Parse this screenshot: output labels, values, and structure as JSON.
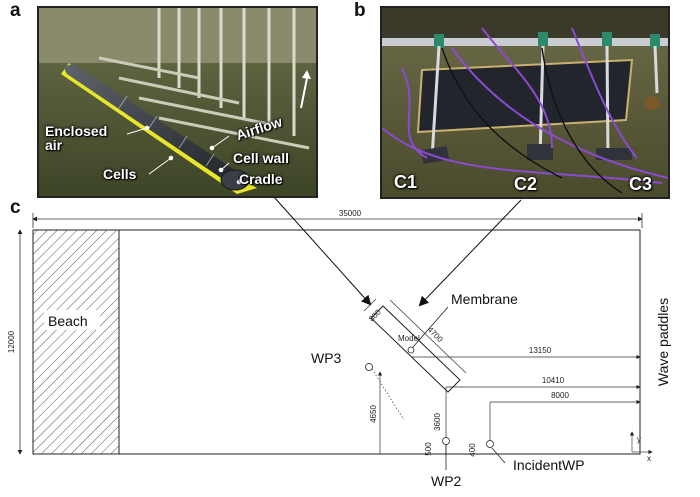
{
  "panels": {
    "a": "a",
    "b": "b",
    "c": "c"
  },
  "photo_a": {
    "labels": {
      "enclosed_air": "Enclosed\nair",
      "airflow": "Airflow",
      "cell_wall": "Cell wall",
      "cells": "Cells",
      "cradle": "Cradle"
    },
    "colors": {
      "water": "#4f5a34",
      "tube": "#2e3238",
      "cradle": "#e8e62a"
    }
  },
  "photo_b": {
    "labels": {
      "c1": "C1",
      "c2": "C2",
      "c3": "C3"
    },
    "colors": {
      "water": "#5a5c38",
      "membrane": "#22262c",
      "cable": "#8a4bd0",
      "frame": "#c9cdd1"
    }
  },
  "schematic": {
    "overall_length": "35000",
    "tank_width": "12000",
    "beach": "Beach",
    "wave_paddles": "Wave paddles",
    "membrane": "Membrane",
    "model": "Model",
    "wp3": "WP3",
    "wp2": "WP2",
    "incident_wp": "IncidentWP",
    "dims": {
      "d860": "860",
      "d4700": "4700",
      "d13150": "13150",
      "d10410": "10410",
      "d8000": "8000",
      "d4650": "4650",
      "d3600": "3600",
      "d500": "500",
      "d400": "400"
    },
    "axis_y": "y",
    "axis_x": "x"
  }
}
